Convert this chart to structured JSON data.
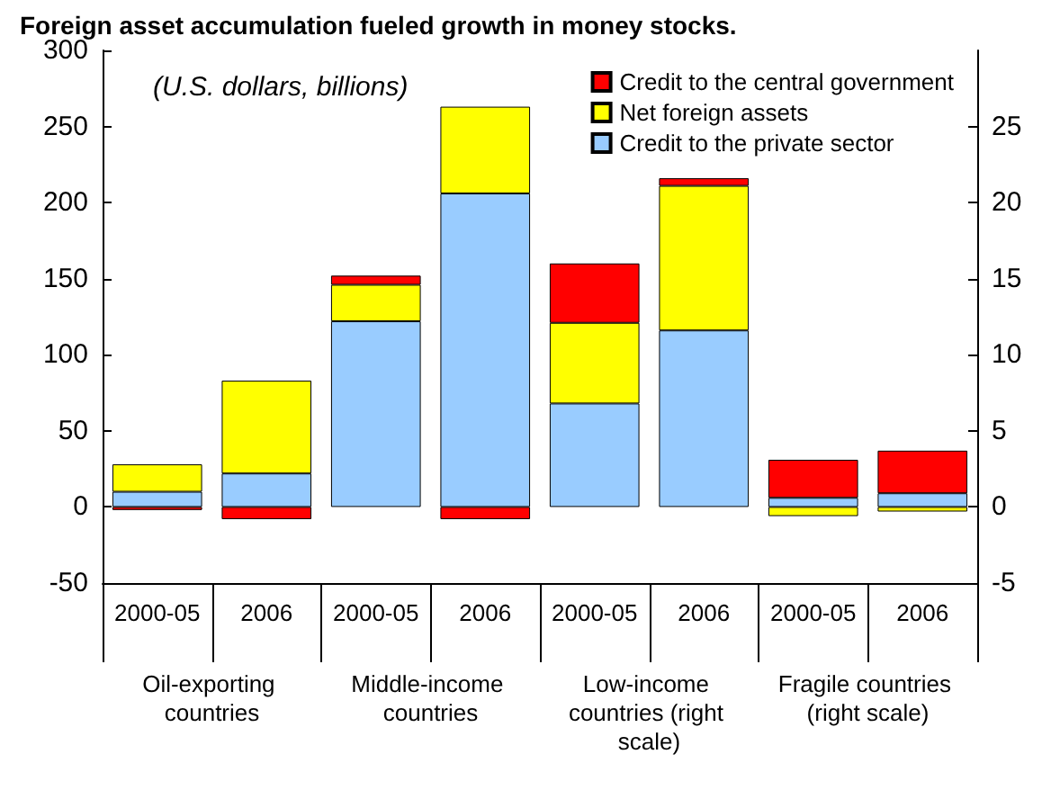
{
  "chart_data": {
    "type": "bar",
    "title": "Foreign asset accumulation fueled growth in money stocks.",
    "subtitle": "(U.S. dollars, billions)",
    "categories": [
      "2000-05",
      "2006",
      "2000-05",
      "2006",
      "2000-05",
      "2006",
      "2000-05",
      "2006"
    ],
    "annotations": [
      "Oil-exporting countries",
      "Middle-income countries",
      "Low-income countries (right scale)",
      "Fragile countries (right scale)"
    ],
    "stacked": true,
    "legend": "top right",
    "grid": false,
    "series": [
      {
        "name": "Credit to the private sector",
        "color": "#99ccff",
        "values": [
          10,
          22,
          122,
          206,
          null,
          null,
          null,
          null
        ]
      },
      {
        "name": "Net foreign assets",
        "color": "#ffff00",
        "values": [
          18,
          61,
          24,
          57,
          null,
          null,
          null,
          null
        ]
      },
      {
        "name": "Credit to the central government",
        "color": "#ff0000",
        "values": [
          -2,
          -8,
          6,
          -8,
          null,
          null,
          null,
          null
        ]
      },
      {
        "axis": "y2",
        "color": "#99ccff",
        "values": [
          null,
          null,
          null,
          null,
          6.8,
          11.6,
          0.6,
          0.9
        ]
      },
      {
        "axis": "y2",
        "color": "#ffff00",
        "values": [
          null,
          null,
          null,
          null,
          5.3,
          9.5,
          -0.6,
          -0.3
        ]
      },
      {
        "axis": "y2",
        "color": "#ff0000",
        "values": [
          null,
          null,
          null,
          null,
          3.9,
          0.5,
          2.5,
          2.8
        ]
      }
    ],
    "ylim": [
      -50,
      300
    ],
    "yticks": [
      -50,
      0,
      50,
      100,
      150,
      200,
      250,
      300
    ],
    "y2lim": [
      -5,
      30
    ],
    "y2ticks": [
      -5,
      0,
      5,
      10,
      15,
      20,
      25
    ]
  }
}
